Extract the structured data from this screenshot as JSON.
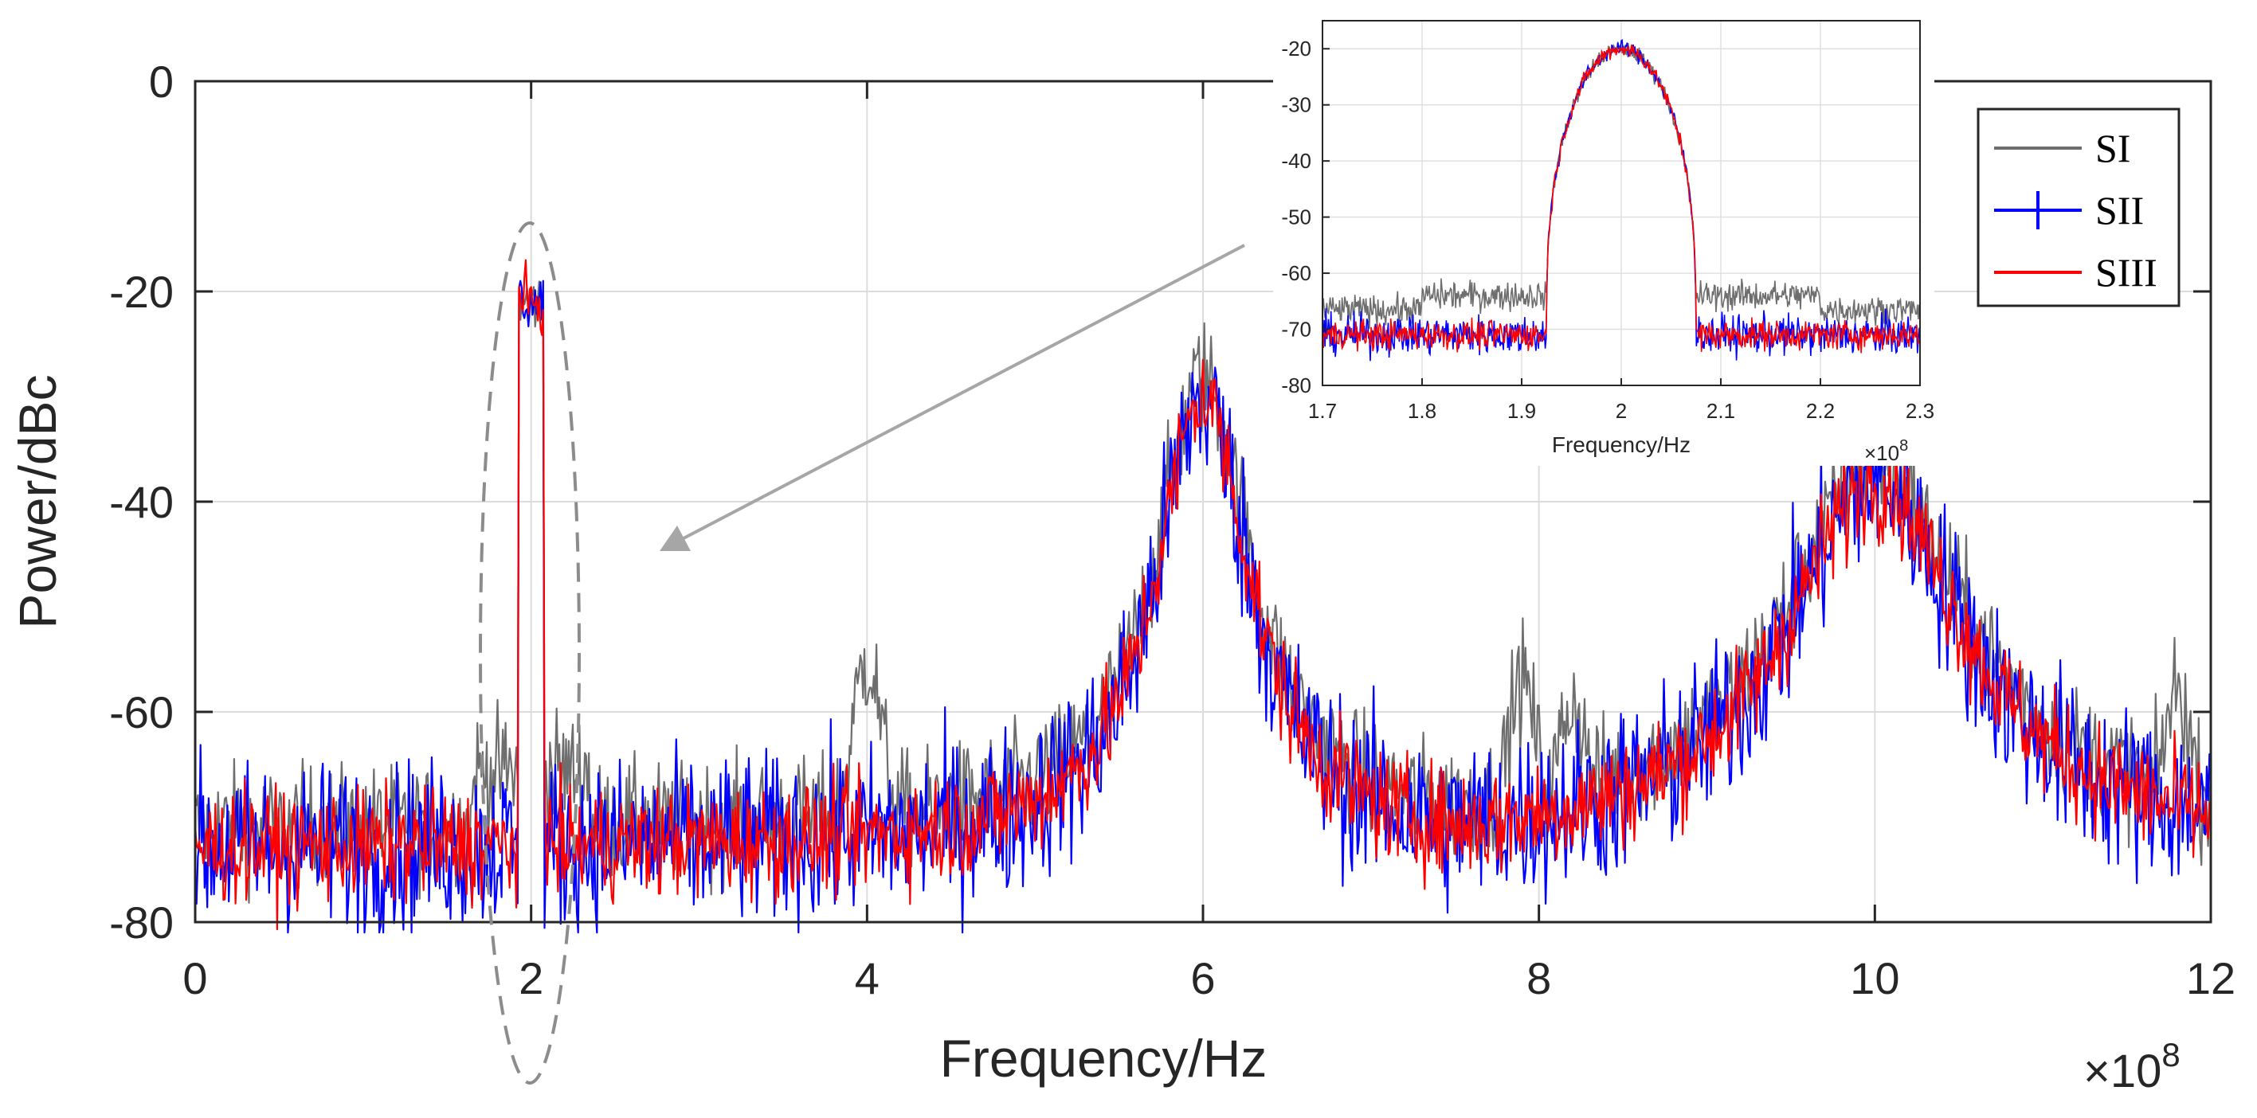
{
  "chart_data": [
    {
      "id": "main",
      "type": "line",
      "title": "",
      "xlabel": "Frequency/Hz",
      "ylabel": "Power/dBc",
      "x_multiplier": "×10",
      "x_exponent": "8",
      "xlim": [
        0,
        12
      ],
      "ylim": [
        -80,
        0
      ],
      "xticks": [
        0,
        2,
        4,
        6,
        8,
        10,
        12
      ],
      "yticks": [
        -80,
        -60,
        -40,
        -20,
        0
      ],
      "xtick_labels": [
        "0",
        "2",
        "4",
        "6",
        "8",
        "10",
        "12"
      ],
      "ytick_labels": [
        "-80",
        "-60",
        "-40",
        "-20",
        "0"
      ],
      "grid": true,
      "x_unit_scale": 100000000,
      "noise_floor_db": -73,
      "features": {
        "signal_band": {
          "center": 2.0,
          "width": 0.15,
          "peak_db": -21
        },
        "harmonics": [
          {
            "center": 6.0,
            "peak_db": -30,
            "half_width": 0.35
          },
          {
            "center": 10.0,
            "peak_db": -38,
            "half_width": 0.65
          }
        ],
        "si_only_spurs": [
          {
            "center": 4.0,
            "peak_db": -57
          },
          {
            "center": 7.9,
            "peak_db": -59
          },
          {
            "center": 8.2,
            "peak_db": -61
          },
          {
            "center": 11.8,
            "peak_db": -60
          }
        ]
      },
      "series": [
        {
          "name": "SI",
          "color": "#6e6e6e"
        },
        {
          "name": "SII",
          "color": "#0000ff"
        },
        {
          "name": "SIII",
          "color": "#ff0000"
        }
      ],
      "legend_position": "top-right"
    },
    {
      "id": "inset",
      "type": "line",
      "title": "",
      "xlabel": "Frequency/Hz",
      "ylabel": "",
      "x_multiplier": "×10",
      "x_exponent": "8",
      "xlim": [
        1.7,
        2.3
      ],
      "ylim": [
        -80,
        -15
      ],
      "xticks": [
        1.7,
        1.8,
        1.9,
        2.0,
        2.1,
        2.2,
        2.3
      ],
      "yticks": [
        -80,
        -70,
        -60,
        -50,
        -40,
        -30,
        -20
      ],
      "xtick_labels": [
        "1.7",
        "1.8",
        "1.9",
        "2",
        "2.1",
        "2.2",
        "2.3"
      ],
      "ytick_labels": [
        "-80",
        "-70",
        "-60",
        "-50",
        "-40",
        "-30",
        "-20"
      ],
      "grid": true,
      "band_edges": [
        1.925,
        2.075
      ],
      "band_level_db": -21,
      "floor_db": -71
    }
  ]
}
